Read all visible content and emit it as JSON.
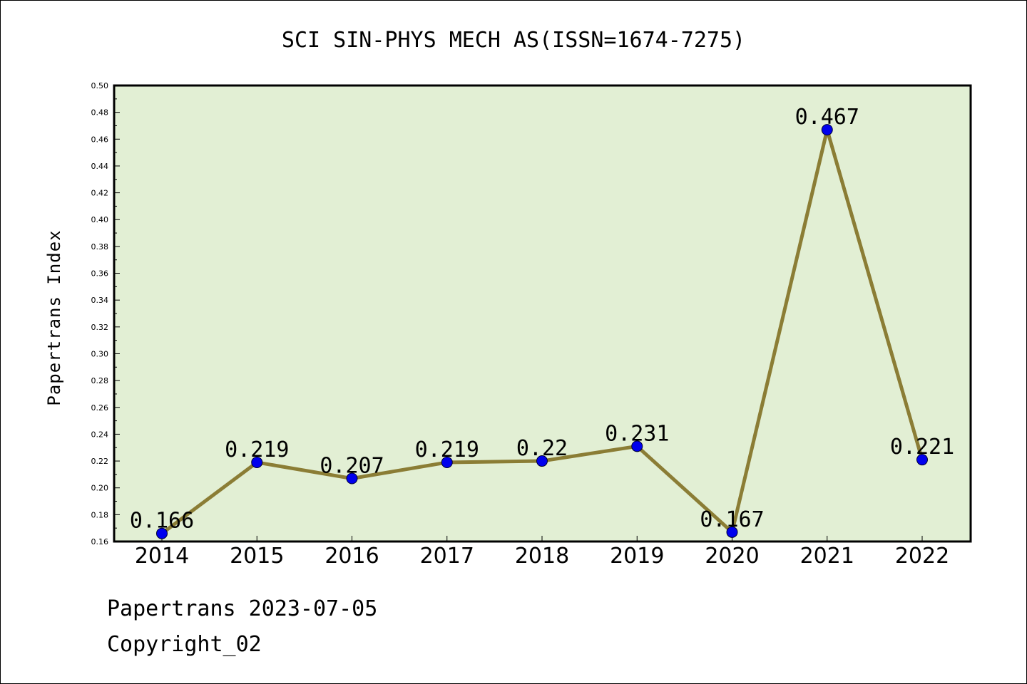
{
  "chart_data": {
    "type": "line",
    "title": "SCI SIN-PHYS MECH AS(ISSN=1674-7275)",
    "xlabel": "",
    "ylabel": "Papertrans Index",
    "categories": [
      "2014",
      "2015",
      "2016",
      "2017",
      "2018",
      "2019",
      "2020",
      "2021",
      "2022"
    ],
    "values": [
      0.166,
      0.219,
      0.207,
      0.219,
      0.22,
      0.231,
      0.167,
      0.467,
      0.221
    ],
    "value_labels": [
      "0.166",
      "0.219",
      "0.207",
      "0.219",
      "0.22",
      "0.231",
      "0.167",
      "0.467",
      "0.221"
    ],
    "ylim": [
      0.16,
      0.5
    ],
    "yticks": [
      "0.16",
      "0.18",
      "0.20",
      "0.22",
      "0.24",
      "0.26",
      "0.28",
      "0.30",
      "0.32",
      "0.34",
      "0.36",
      "0.38",
      "0.40",
      "0.42",
      "0.44",
      "0.46",
      "0.48",
      "0.50"
    ],
    "grid": false,
    "legend": "none",
    "colors": {
      "line": "#8B7D35",
      "marker": "#0000EE",
      "plot_background": "#E2EFD4",
      "frame": "#000000"
    }
  },
  "footer": {
    "line1": "Papertrans 2023-07-05",
    "line2": "Copyright_02"
  }
}
